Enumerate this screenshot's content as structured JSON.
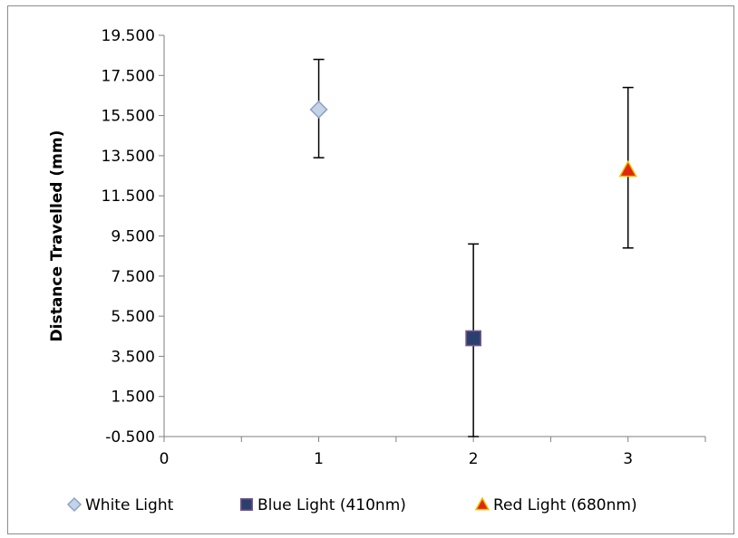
{
  "chart_data": {
    "type": "scatter",
    "title": "",
    "xlabel": "",
    "ylabel": "Distance Travelled (mm)",
    "xlim": [
      0,
      3.5
    ],
    "ylim": [
      -0.5,
      19.5
    ],
    "x_ticks": [
      "0",
      "1",
      "2",
      "3"
    ],
    "y_ticks": [
      "19.500",
      "17.500",
      "15.500",
      "13.500",
      "11.500",
      "9.500",
      "7.500",
      "5.500",
      "3.500",
      "1.500",
      "-0.500"
    ],
    "grid": false,
    "legend_position": "bottom",
    "series": [
      {
        "name": "White Light",
        "marker": "diamond",
        "color": "#c5d3e8",
        "stroke": "#8ea2c4",
        "x": 1,
        "y": 15.8,
        "error_low": 13.4,
        "error_high": 18.3
      },
      {
        "name": "Blue Light (410nm)",
        "marker": "square",
        "color": "#2b3f6e",
        "stroke": "#7a5a8c",
        "x": 2,
        "y": 4.4,
        "error_low": -0.5,
        "error_high": 9.1
      },
      {
        "name": "Red Light (680nm)",
        "marker": "triangle",
        "color": "#e02810",
        "stroke": "#f0c000",
        "x": 3,
        "y": 12.8,
        "error_low": 8.9,
        "error_high": 16.9
      }
    ]
  }
}
